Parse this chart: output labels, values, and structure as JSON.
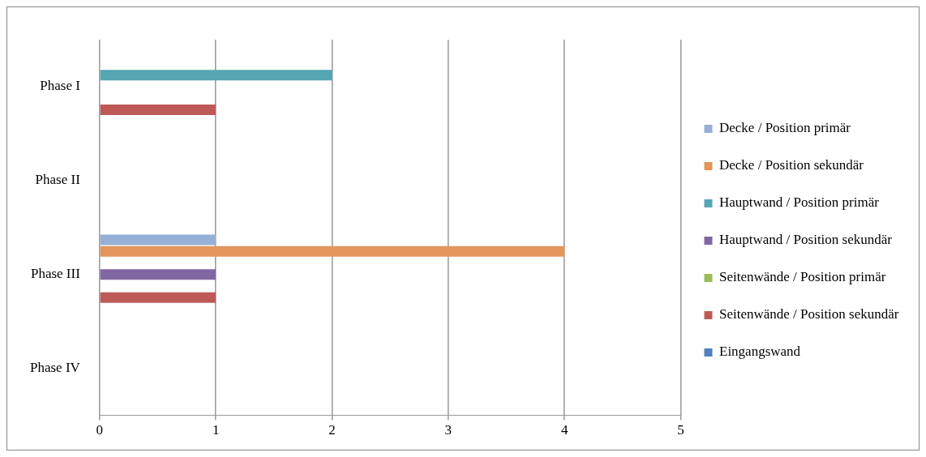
{
  "chart_data": {
    "type": "bar",
    "orientation": "horizontal",
    "categories": [
      "Phase I",
      "Phase II",
      "Phase III",
      "Phase IV"
    ],
    "series": [
      {
        "name": "Decke / Position primär",
        "color": "#95b0d4",
        "values": [
          0,
          0,
          1,
          0
        ]
      },
      {
        "name": "Decke / Position sekundär",
        "color": "#e3955a",
        "values": [
          0,
          0,
          4,
          0
        ]
      },
      {
        "name": "Hauptwand / Position primär",
        "color": "#55a5b3",
        "values": [
          2,
          0,
          0,
          0
        ]
      },
      {
        "name": "Hauptwand / Position sekundär",
        "color": "#8067a2",
        "values": [
          0,
          0,
          1,
          0
        ]
      },
      {
        "name": "Seitenwände / Position primär",
        "color": "#9bbb59",
        "values": [
          0,
          0,
          0,
          0
        ]
      },
      {
        "name": "Seitenwände / Position sekundär",
        "color": "#bd5a58",
        "values": [
          1,
          0,
          1,
          0
        ]
      },
      {
        "name": "Eingangswand",
        "color": "#4f81bd",
        "values": [
          0,
          0,
          0,
          0
        ]
      }
    ],
    "xlim": [
      0,
      5
    ],
    "xticks": [
      0,
      1,
      2,
      3,
      4,
      5
    ],
    "grid": "x",
    "legend": "right"
  }
}
